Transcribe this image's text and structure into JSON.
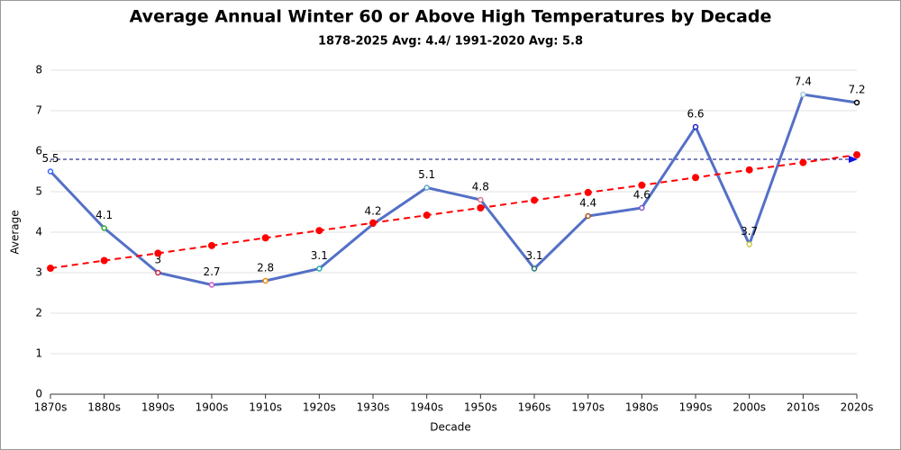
{
  "chart_data": {
    "type": "line",
    "title": "Average Annual Winter 60 or Above High Temperatures by Decade",
    "subtitle": "1878-2025 Avg: 4.4/ 1991-2020 Avg: 5.8",
    "x_label": "Decade",
    "y_label": "Average",
    "categories": [
      "1870s",
      "1880s",
      "1890s",
      "1900s",
      "1910s",
      "1920s",
      "1930s",
      "1940s",
      "1950s",
      "1960s",
      "1970s",
      "1980s",
      "1990s",
      "2000s",
      "2010s",
      "2020s"
    ],
    "series": [
      {
        "color": "#5470c6",
        "values": [
          5.5,
          4.1,
          3,
          2.7,
          2.8,
          3.1,
          4.2,
          5.1,
          4.8,
          3.1,
          4.4,
          4.6,
          6.6,
          3.7,
          7.4,
          7.2
        ],
        "point_colors": [
          "#3366ff",
          "#33aa33",
          "#cc2244",
          "#cc55cc",
          "#ee8800",
          "#22aaaa",
          "#cc3333",
          "#66aacc",
          "#dd7788",
          "#227777",
          "#aa5522",
          "#8855cc",
          "#2222cc",
          "#cccc44",
          "#aaccdd",
          "#000000"
        ]
      },
      {
        "color": "#ff0000",
        "values": [
          3.11,
          3.3,
          3.48,
          3.67,
          3.86,
          4.04,
          4.23,
          4.42,
          4.6,
          4.79,
          4.98,
          5.16,
          5.35,
          5.54,
          5.72,
          5.91
        ]
      }
    ],
    "avg_line": 5.8,
    "avg_line_color": "#000080",
    "ylim": [
      0,
      8
    ],
    "yticks": [
      0,
      1,
      2,
      3,
      4,
      5,
      6,
      7,
      8
    ],
    "grid": true
  }
}
